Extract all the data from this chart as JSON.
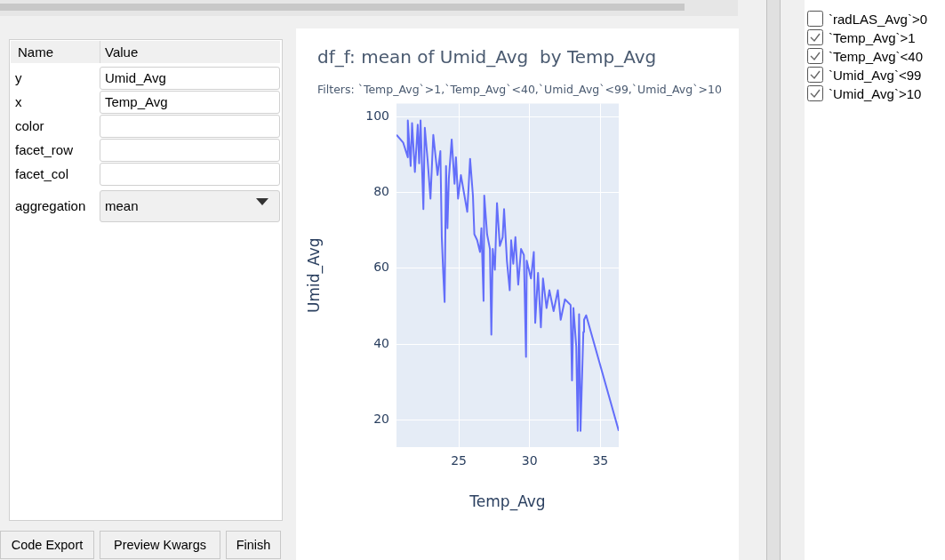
{
  "chart_data": [
    {
      "type": "other",
      "annotations": [
        "Name",
        "Value",
        "y",
        "Umid_Avg",
        "x",
        "Temp_Avg",
        "color",
        "facet_row",
        "facet_col",
        "aggregation",
        "mean",
        "Code Export",
        "Preview Kwargs",
        "Finish"
      ]
    },
    {
      "type": "line",
      "title": "df_f: mean of Umid_Avg  by Temp_Avg",
      "subtitle": "Filters: `Temp_Avg`>1,`Temp_Avg`<40,`Umid_Avg`<99,`Umid_Avg`>10",
      "xlabel": "Temp_Avg",
      "ylabel": "Umid_Avg",
      "x": [
        20.6,
        21.07,
        21.4,
        21.4,
        21.6,
        21.7,
        21.9,
        22.1,
        22.2,
        22.3,
        22.5,
        22.6,
        22.8,
        23.0,
        23.2,
        23.5,
        23.7,
        23.8,
        23.9,
        24.0,
        24.1,
        24.2,
        24.3,
        24.5,
        24.7,
        24.8,
        24.95,
        25.15,
        25.4,
        25.6,
        25.8,
        26.0,
        26.1,
        26.3,
        26.5,
        26.6,
        26.75,
        26.8,
        27.0,
        27.2,
        27.3,
        27.4,
        27.55,
        27.7,
        27.9,
        28.1,
        28.2,
        28.4,
        28.6,
        28.7,
        28.85,
        29.0,
        29.2,
        29.4,
        29.6,
        29.75,
        29.8,
        30.1,
        30.3,
        30.4,
        30.6,
        30.8,
        30.95,
        31.2,
        31.4,
        31.7,
        32.0,
        32.2,
        32.5,
        32.9,
        33.0,
        33.1,
        33.3,
        33.4,
        33.5,
        33.6,
        33.8,
        33.85,
        34.0,
        36.3
      ],
      "series": [
        {
          "color": "#636efa",
          "values": [
            95.2,
            93.2,
            89.3,
            99,
            87,
            98.3,
            85.4,
            97.9,
            87.7,
            99,
            75.6,
            97.1,
            88.5,
            78.4,
            95.2,
            84.6,
            90.9,
            68.2,
            58.9,
            51.1,
            87,
            70.6,
            83.8,
            94,
            82.3,
            89.3,
            78.4,
            84.6,
            79.2,
            74.9,
            88.9,
            79.2,
            69,
            67.4,
            64.3,
            70.6,
            51.4,
            79.2,
            69,
            65.1,
            42.5,
            65.1,
            59.6,
            77.2,
            65.9,
            68.2,
            75.6,
            62,
            54.2,
            67.4,
            61.2,
            68.2,
            55.7,
            65.1,
            63.5,
            36.6,
            62,
            57.3,
            64.3,
            45.6,
            58.8,
            44.4,
            57.3,
            49.5,
            54.2,
            48.7,
            54.2,
            46.4,
            51.8,
            50.3,
            30.4,
            49.5,
            39.3,
            17.1,
            47.9,
            17.1,
            43.2,
            46.4,
            47.6,
            17.1
          ]
        }
      ],
      "xlim": [
        20.6,
        36.3
      ],
      "ylim": [
        12.8,
        103.5
      ],
      "xticks": [
        25,
        30,
        35
      ],
      "yticks": [
        20,
        40,
        60,
        80,
        100
      ],
      "grid": true,
      "legend": false
    },
    {
      "type": "other",
      "annotations": [
        "`radLAS_Avg`>0",
        "`Temp_Avg`>1",
        "`Temp_Avg`<40",
        "`Umid_Avg`<99",
        "`Umid_Avg`>10"
      ]
    }
  ]
}
